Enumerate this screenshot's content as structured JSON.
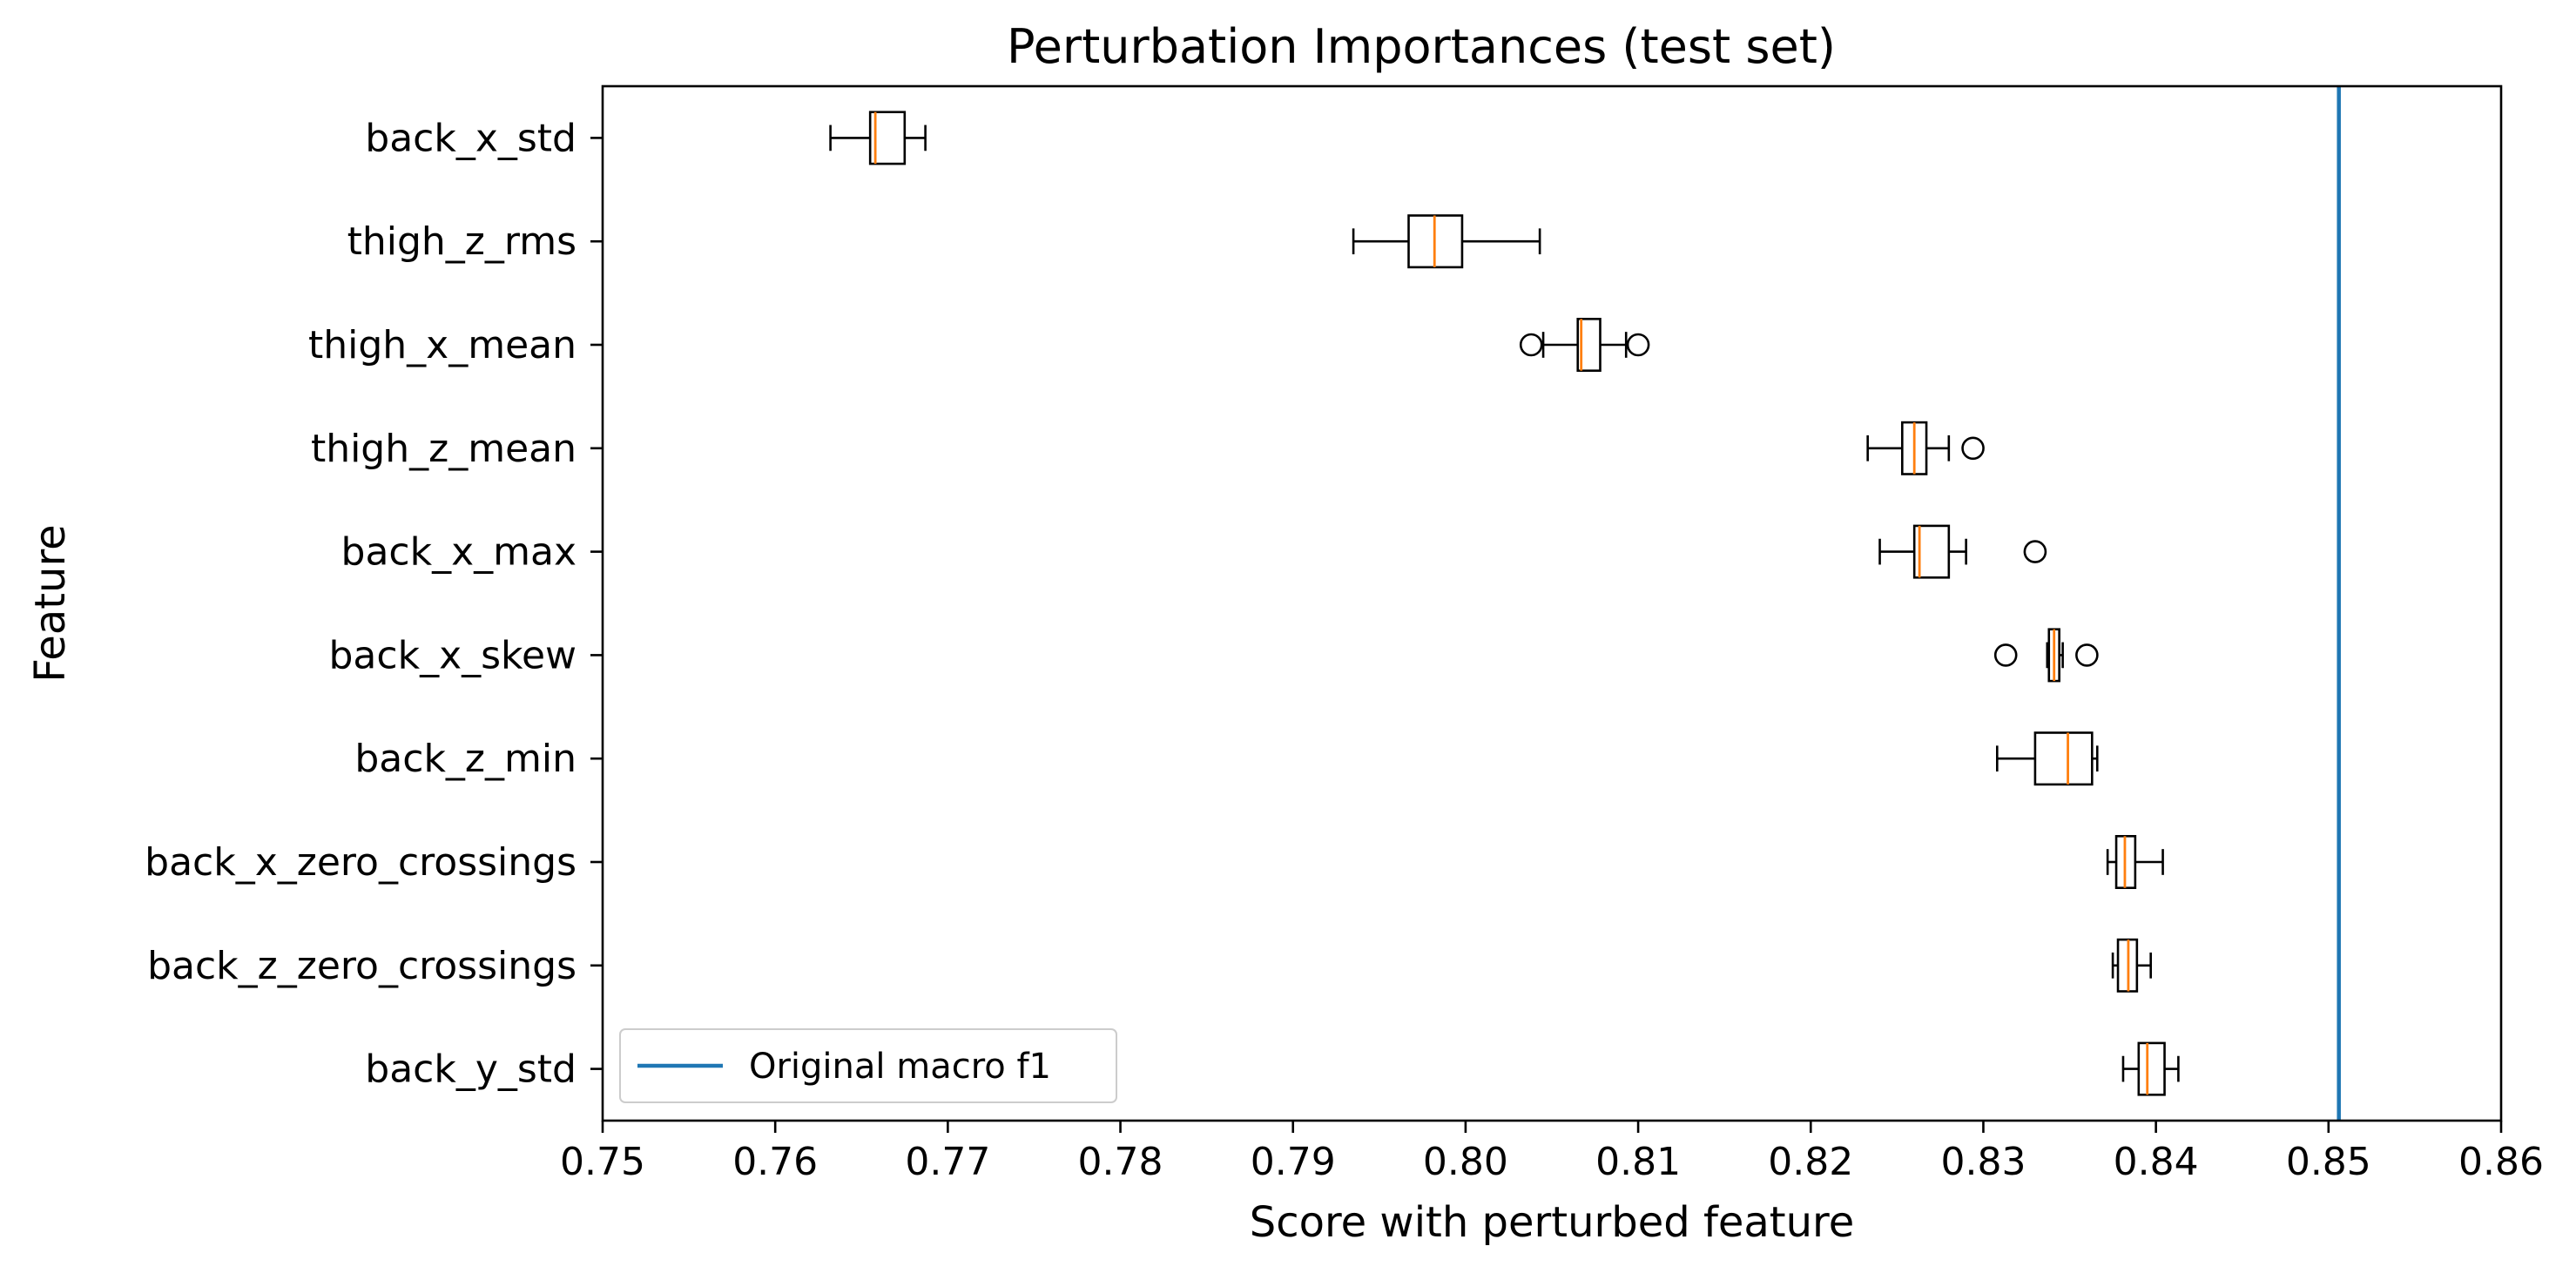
{
  "chart_data": {
    "type": "boxplot",
    "orientation": "horizontal",
    "title": "Perturbation Importances (test set)",
    "xlabel": "Score with perturbed feature",
    "ylabel": "Feature",
    "xlim": [
      0.75,
      0.86
    ],
    "xticks": [
      0.75,
      0.76,
      0.77,
      0.78,
      0.79,
      0.8,
      0.81,
      0.82,
      0.83,
      0.84,
      0.85,
      0.86
    ],
    "xtick_labels": [
      "0.75",
      "0.76",
      "0.77",
      "0.78",
      "0.79",
      "0.80",
      "0.81",
      "0.82",
      "0.83",
      "0.84",
      "0.85",
      "0.86"
    ],
    "grid": false,
    "categories": [
      "back_x_std",
      "thigh_z_rms",
      "thigh_x_mean",
      "thigh_z_mean",
      "back_x_max",
      "back_x_skew",
      "back_z_min",
      "back_x_zero_crossings",
      "back_z_zero_crossings",
      "back_y_std"
    ],
    "boxes": [
      {
        "label": "back_x_std",
        "whislo": 0.7632,
        "q1": 0.7655,
        "med": 0.7658,
        "q3": 0.7675,
        "whishi": 0.7687,
        "fliers": []
      },
      {
        "label": "thigh_z_rms",
        "whislo": 0.7935,
        "q1": 0.7967,
        "med": 0.7982,
        "q3": 0.7998,
        "whishi": 0.8043,
        "fliers": []
      },
      {
        "label": "thigh_x_mean",
        "whislo": 0.8045,
        "q1": 0.8065,
        "med": 0.8067,
        "q3": 0.8078,
        "whishi": 0.8093,
        "fliers": [
          0.8038,
          0.81
        ]
      },
      {
        "label": "thigh_z_mean",
        "whislo": 0.8233,
        "q1": 0.8253,
        "med": 0.826,
        "q3": 0.8267,
        "whishi": 0.828,
        "fliers": [
          0.8294
        ]
      },
      {
        "label": "back_x_max",
        "whislo": 0.824,
        "q1": 0.826,
        "med": 0.8263,
        "q3": 0.828,
        "whishi": 0.829,
        "fliers": [
          0.833
        ]
      },
      {
        "label": "back_x_skew",
        "whislo": 0.8337,
        "q1": 0.8338,
        "med": 0.8341,
        "q3": 0.8344,
        "whishi": 0.8346,
        "fliers": [
          0.8313,
          0.836
        ]
      },
      {
        "label": "back_z_min",
        "whislo": 0.8308,
        "q1": 0.833,
        "med": 0.8349,
        "q3": 0.8363,
        "whishi": 0.8366,
        "fliers": []
      },
      {
        "label": "back_x_zero_crossings",
        "whislo": 0.8372,
        "q1": 0.8377,
        "med": 0.8382,
        "q3": 0.8388,
        "whishi": 0.8404,
        "fliers": []
      },
      {
        "label": "back_z_zero_crossings",
        "whislo": 0.8375,
        "q1": 0.8378,
        "med": 0.8384,
        "q3": 0.8389,
        "whishi": 0.8397,
        "fliers": []
      },
      {
        "label": "back_y_std",
        "whislo": 0.8381,
        "q1": 0.839,
        "med": 0.8395,
        "q3": 0.8405,
        "whishi": 0.8413,
        "fliers": []
      }
    ],
    "reference_line": {
      "label": "Original macro f1",
      "x": 0.8506,
      "color": "#1f77b4"
    },
    "legend": {
      "position": "lower-left",
      "entries": [
        "Original macro f1"
      ]
    },
    "colors": {
      "median": "#ff7f0e",
      "box": "#000000",
      "reference": "#1f77b4"
    }
  }
}
